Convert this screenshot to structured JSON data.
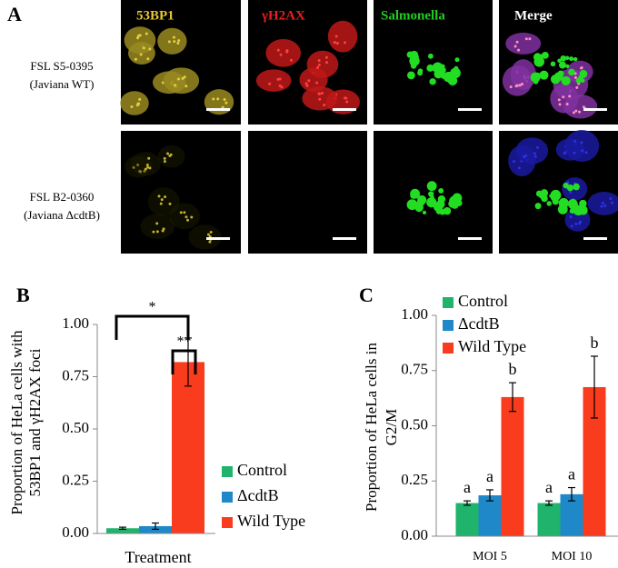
{
  "panel_a": {
    "label": "A",
    "columns": [
      "53BP1",
      "γH2AX",
      "Salmonella",
      "Merge"
    ],
    "rows": [
      [
        "FSL S5-0395",
        "(Javiana WT)"
      ],
      [
        "FSL B2-0360",
        "(Javiana ΔcdtB)"
      ]
    ]
  },
  "chart_data": [
    {
      "type": "bar",
      "label": "B",
      "ylabel": [
        "Proportion of HeLa cells with",
        "53BP1 and γH2AX foci"
      ],
      "xlabel": "Treatment",
      "categories": [
        null
      ],
      "series": [
        {
          "name": "Control",
          "color": "#1fb36b",
          "values": [
            0.025
          ],
          "errors": [
            0.005
          ]
        },
        {
          "name": "ΔcdtB",
          "color": "#1e88c8",
          "values": [
            0.035
          ],
          "errors": [
            0.015
          ]
        },
        {
          "name": "Wild Type",
          "color": "#f93b1e",
          "values": [
            0.82
          ],
          "errors": [
            0.115
          ]
        }
      ],
      "significance": [
        "*",
        "**"
      ],
      "ylim": [
        0,
        1
      ],
      "yticks": [
        {
          "value": 0,
          "label": "0.00"
        },
        {
          "value": 0.25,
          "label": "0.25"
        },
        {
          "value": 0.5,
          "label": "0.50"
        },
        {
          "value": 0.75,
          "label": "0.75"
        },
        {
          "value": 1,
          "label": "1.00"
        }
      ]
    },
    {
      "type": "bar",
      "label": "C",
      "ylabel": [
        "Proportion of HeLa cells in",
        "G2/M"
      ],
      "categories": [
        "MOI 5",
        "MOI 10"
      ],
      "series": [
        {
          "name": "Control",
          "color": "#1fb36b",
          "values": [
            0.15,
            0.15
          ],
          "errors": [
            0.01,
            0.01
          ],
          "letters": [
            "a",
            "a"
          ]
        },
        {
          "name": "ΔcdtB",
          "color": "#1e88c8",
          "values": [
            0.185,
            0.19
          ],
          "errors": [
            0.025,
            0.03
          ],
          "letters": [
            "a",
            "a"
          ]
        },
        {
          "name": "Wild Type",
          "color": "#f93b1e",
          "values": [
            0.63,
            0.675
          ],
          "errors": [
            0.065,
            0.14
          ],
          "letters": [
            "b",
            "b"
          ]
        }
      ],
      "ylim": [
        0,
        1
      ],
      "yticks": [
        {
          "value": 0,
          "label": "0.00"
        },
        {
          "value": 0.25,
          "label": "0.25"
        },
        {
          "value": 0.5,
          "label": "0.50"
        },
        {
          "value": 0.75,
          "label": "0.75"
        },
        {
          "value": 1,
          "label": "1.00"
        }
      ]
    }
  ]
}
